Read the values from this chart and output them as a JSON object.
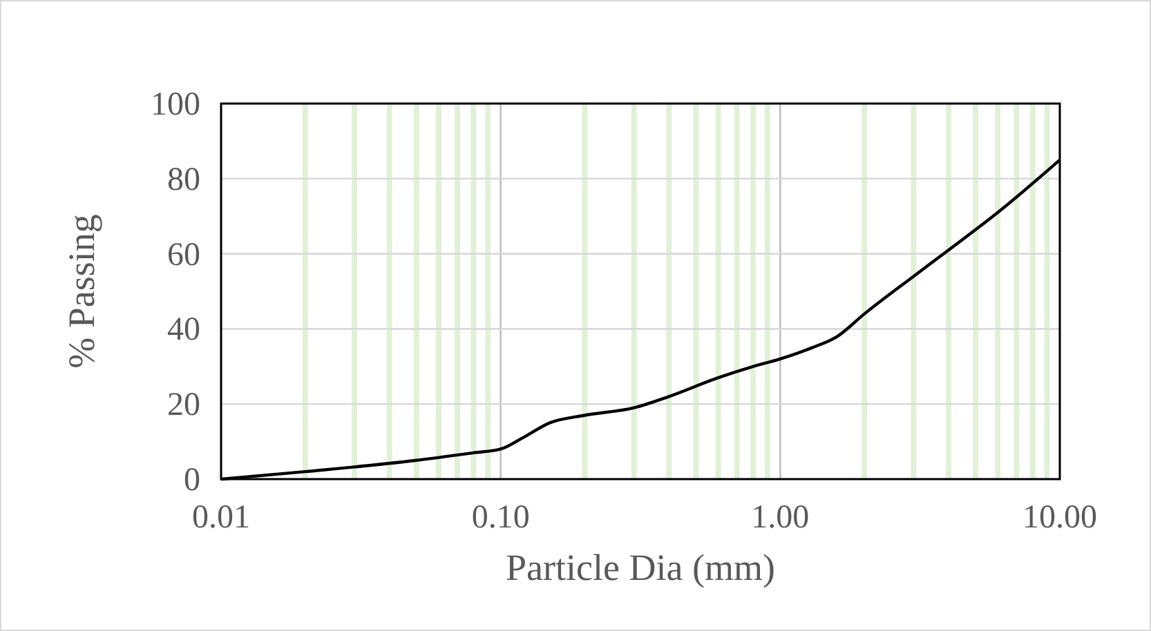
{
  "chart_data": {
    "type": "line",
    "xlabel": "Particle Dia (mm)",
    "ylabel": "% Passing",
    "log": "x",
    "x": [
      0.01,
      0.02,
      0.05,
      0.08,
      0.1,
      0.12,
      0.15,
      0.2,
      0.3,
      0.4,
      0.6,
      0.8,
      1.0,
      1.3,
      1.6,
      2,
      3,
      4,
      6,
      10
    ],
    "series": [
      {
        "color": "#000000",
        "values": [
          0,
          2,
          5,
          7,
          8,
          11,
          15,
          17,
          19,
          22,
          27,
          30,
          32,
          35,
          38,
          44,
          54,
          61,
          71,
          85
        ]
      }
    ],
    "xlim": [
      0.01,
      10
    ],
    "ylim": [
      0,
      100
    ],
    "xticks": [
      {
        "value": 0.01,
        "label": "0.01"
      },
      {
        "value": 0.1,
        "label": "0.10"
      },
      {
        "value": 1,
        "label": "1.00"
      },
      {
        "value": 10,
        "label": "10.00"
      }
    ],
    "yticks": [
      0,
      20,
      40,
      60,
      80,
      100
    ],
    "grid": true,
    "marker": "none",
    "line_style": "solid"
  }
}
